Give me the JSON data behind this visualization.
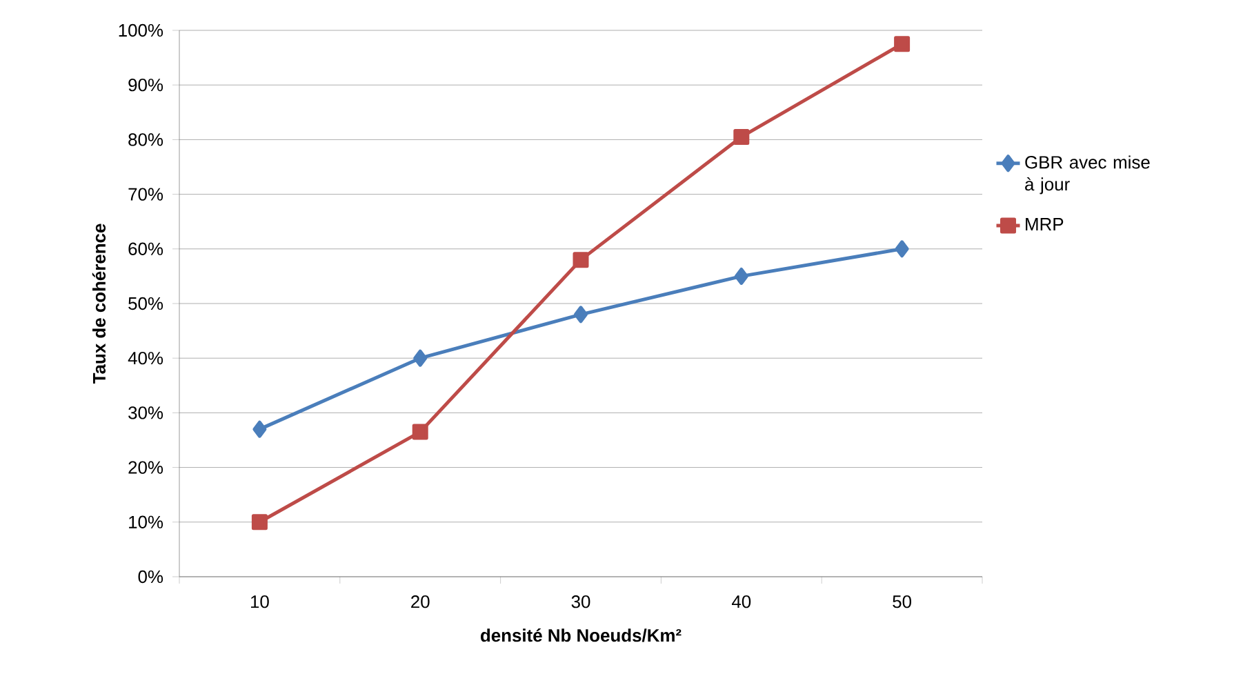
{
  "chart_data": {
    "type": "line",
    "xlabel": "densité Nb Noeuds/Km²",
    "ylabel": "Taux de cohérence",
    "categories": [
      "10",
      "20",
      "30",
      "40",
      "50"
    ],
    "series": [
      {
        "name": "GBR avec mise à jour",
        "color": "#4a7ebb",
        "marker": "diamond",
        "values": [
          27,
          40,
          48,
          55,
          60
        ]
      },
      {
        "name": "MRP",
        "color": "#be4b48",
        "marker": "square",
        "values": [
          10,
          26.5,
          58,
          80.5,
          97.5
        ]
      }
    ],
    "ylim": [
      0,
      100
    ],
    "yticks": [
      {
        "value": 0,
        "label": "0%"
      },
      {
        "value": 10,
        "label": "10%"
      },
      {
        "value": 20,
        "label": "20%"
      },
      {
        "value": 30,
        "label": "30%"
      },
      {
        "value": 40,
        "label": "40%"
      },
      {
        "value": 50,
        "label": "50%"
      },
      {
        "value": 60,
        "label": "60%"
      },
      {
        "value": 70,
        "label": "70%"
      },
      {
        "value": 80,
        "label": "80%"
      },
      {
        "value": 90,
        "label": "90%"
      },
      {
        "value": 100,
        "label": "100%"
      }
    ],
    "grid": "y",
    "legend": "right"
  }
}
